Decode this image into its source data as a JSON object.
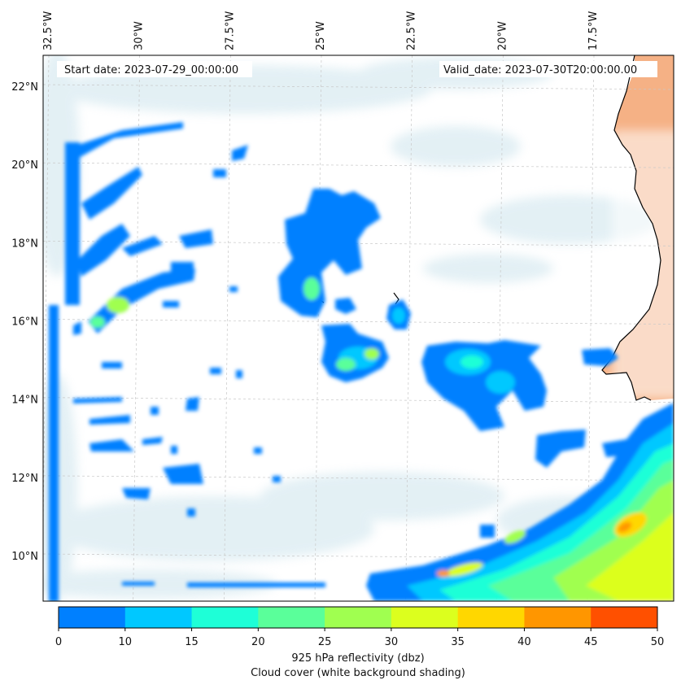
{
  "map": {
    "start_date": "Start date: 2023-07-29_00:00:00",
    "valid_date": "Valid_date: 2023-07-30T20:00:00.00",
    "lon_labels": [
      {
        "text": "32.5°W",
        "lon": -32.5
      },
      {
        "text": "30°W",
        "lon": -30.0
      },
      {
        "text": "27.5°W",
        "lon": -27.5
      },
      {
        "text": "25°W",
        "lon": -25.0
      },
      {
        "text": "22.5°W",
        "lon": -22.5
      },
      {
        "text": "20°W",
        "lon": -20.0
      },
      {
        "text": "17.5°W",
        "lon": -17.5
      }
    ],
    "lat_labels": [
      {
        "text": "22°N",
        "lat": 22
      },
      {
        "text": "20°N",
        "lat": 20
      },
      {
        "text": "18°N",
        "lat": 18
      },
      {
        "text": "16°N",
        "lat": 16
      },
      {
        "text": "14°N",
        "lat": 14
      },
      {
        "text": "12°N",
        "lat": 12
      },
      {
        "text": "10°N",
        "lat": 10
      }
    ],
    "extent": {
      "lon": [
        -32.5,
        -15.0
      ],
      "lat": [
        8.9,
        22.8
      ]
    },
    "land_color": "#f4a978",
    "cloud_color": "#9ccadb"
  },
  "colorbar": {
    "ticks": [
      "0",
      "10",
      "15",
      "20",
      "25",
      "30",
      "35",
      "40",
      "45",
      "50"
    ],
    "colors": [
      "#0080ff",
      "#00c8ff",
      "#1effd7",
      "#5aff9a",
      "#a0ff50",
      "#dcff1e",
      "#ffd700",
      "#ff9600",
      "#ff5000"
    ],
    "label_line1": "925 hPa reflectivity (dbz)",
    "label_line2": "Cloud cover (white background shading)"
  }
}
